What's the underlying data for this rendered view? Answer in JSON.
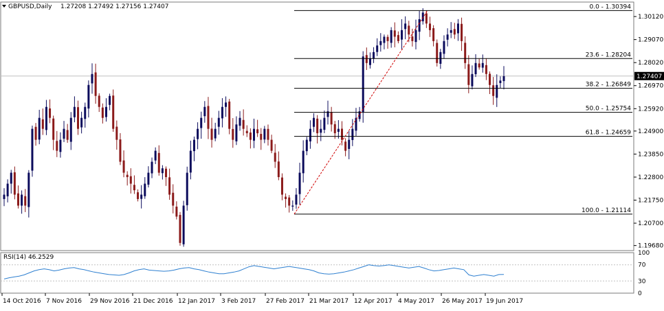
{
  "header": {
    "symbol": "GBPUSD,Daily",
    "ohlc": "1.27208 1.27492 1.27156 1.27407",
    "triangle": "triangle-down-icon"
  },
  "rsi_panel": {
    "label": "RSI(14) 46.2529",
    "scale_labels": [
      "100",
      "70",
      "30",
      "0"
    ]
  },
  "colors": {
    "up_candle": "#0b0b5c",
    "down_candle": "#8b1a1a",
    "fib_line": "#000000",
    "trend_line": "#d00000",
    "rsi_line": "#2d7fd0",
    "rsi_level": "#c0c0c0",
    "current_price_bg": "#000000",
    "frame": "#7a7a7a"
  },
  "chart_data": {
    "type": "candlestick",
    "symbol": "GBPUSD",
    "timeframe": "Daily",
    "current_price": "1.27407",
    "ylim": [
      1.1945,
      1.3078
    ],
    "y_ticks": [
      "1.30120",
      "1.29070",
      "1.28020",
      "1.26970",
      "1.25920",
      "1.24900",
      "1.23850",
      "1.22800",
      "1.21750",
      "1.20700",
      "1.19680"
    ],
    "x_ticks": [
      "14 Oct 2016",
      "7 Nov 2016",
      "29 Nov 2016",
      "21 Dec 2016",
      "12 Jan 2017",
      "3 Feb 2017",
      "27 Feb 2017",
      "21 Mar 2017",
      "12 Apr 2017",
      "4 May 2017",
      "26 May 2017",
      "19 Jun 2017"
    ],
    "fibonacci": {
      "levels": [
        {
          "label": "0.0 - 1.30394",
          "price": 1.30394
        },
        {
          "label": "23.6 - 1.28204",
          "price": 1.28204
        },
        {
          "label": "38.2 - 1.26849",
          "price": 1.26849
        },
        {
          "label": "50.0 - 1.25754",
          "price": 1.25754
        },
        {
          "label": "61.8 - 1.24659",
          "price": 1.24659
        },
        {
          "label": "100.0 - 1.21114",
          "price": 1.21114
        }
      ],
      "trendline": {
        "from_price": 1.21114,
        "to_price": 1.30394,
        "from_date": "14 Mar 2017",
        "to_date": "10 May 2017"
      }
    },
    "close_path": [
      1.22,
      1.225,
      1.23,
      1.22,
      1.215,
      1.22,
      1.215,
      1.23,
      1.25,
      1.245,
      1.255,
      1.25,
      1.26,
      1.255,
      1.245,
      1.24,
      1.245,
      1.25,
      1.245,
      1.255,
      1.26,
      1.25,
      1.255,
      1.26,
      1.27,
      1.275,
      1.265,
      1.26,
      1.255,
      1.26,
      1.265,
      1.25,
      1.245,
      1.235,
      1.23,
      1.228,
      1.225,
      1.222,
      1.218,
      1.22,
      1.225,
      1.23,
      1.235,
      1.24,
      1.23,
      1.232,
      1.228,
      1.22,
      1.215,
      1.21,
      1.198,
      1.215,
      1.23,
      1.24,
      1.245,
      1.25,
      1.255,
      1.26,
      1.25,
      1.245,
      1.25,
      1.255,
      1.26,
      1.262,
      1.25,
      1.245,
      1.252,
      1.255,
      1.25,
      1.248,
      1.245,
      1.25,
      1.248,
      1.245,
      1.25,
      1.245,
      1.24,
      1.235,
      1.228,
      1.22,
      1.218,
      1.215,
      1.215,
      1.22,
      1.23,
      1.24,
      1.245,
      1.25,
      1.255,
      1.248,
      1.25,
      1.255,
      1.258,
      1.252,
      1.248,
      1.25,
      1.245,
      1.24,
      1.245,
      1.25,
      1.255,
      1.258,
      1.283,
      1.28,
      1.282,
      1.285,
      1.288,
      1.29,
      1.292,
      1.29,
      1.295,
      1.292,
      1.29,
      1.295,
      1.298,
      1.293,
      1.29,
      1.295,
      1.3,
      1.303,
      1.298,
      1.295,
      1.29,
      1.28,
      1.285,
      1.29,
      1.293,
      1.295,
      1.293,
      1.298,
      1.29,
      1.28,
      1.27,
      1.275,
      1.28,
      1.278,
      1.28,
      1.275,
      1.27,
      1.265,
      1.27,
      1.272,
      1.274
    ],
    "rsi": {
      "label": "RSI(14) 46.2529",
      "levels": [
        70,
        30
      ],
      "ylim": [
        0,
        100
      ],
      "values": [
        35,
        38,
        40,
        42,
        45,
        50,
        55,
        58,
        60,
        58,
        55,
        57,
        60,
        62,
        63,
        60,
        58,
        55,
        52,
        50,
        48,
        46,
        45,
        44,
        46,
        50,
        55,
        58,
        60,
        57,
        56,
        55,
        54,
        55,
        57,
        60,
        62,
        63,
        60,
        58,
        55,
        52,
        50,
        48,
        48,
        50,
        52,
        55,
        60,
        65,
        68,
        66,
        64,
        62,
        60,
        62,
        64,
        66,
        64,
        62,
        60,
        58,
        55,
        50,
        48,
        47,
        48,
        50,
        52,
        55,
        58,
        62,
        66,
        70,
        68,
        67,
        68,
        70,
        68,
        66,
        64,
        62,
        64,
        66,
        62,
        58,
        55,
        56,
        58,
        60,
        62,
        60,
        58,
        45,
        42,
        44,
        46,
        44,
        42,
        46,
        46.2529
      ]
    }
  }
}
